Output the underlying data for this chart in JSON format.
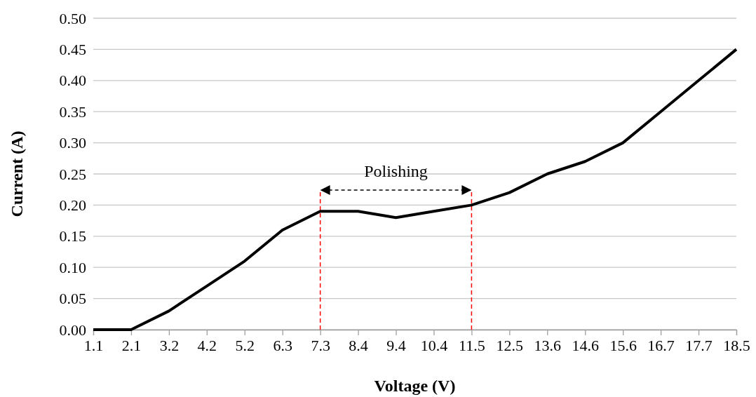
{
  "chart_data": {
    "type": "line",
    "xlabel": "Voltage (V)",
    "ylabel": "Current (A)",
    "categories": [
      "1.1",
      "2.1",
      "3.2",
      "4.2",
      "5.2",
      "6.3",
      "7.3",
      "8.4",
      "9.4",
      "10.4",
      "11.5",
      "12.5",
      "13.6",
      "14.6",
      "15.6",
      "16.7",
      "17.7",
      "18.5"
    ],
    "series": [
      {
        "color": "#000000",
        "values": [
          0,
          0,
          0.03,
          0.07,
          0.11,
          0.16,
          0.19,
          0.19,
          0.18,
          0.19,
          0.2,
          0.22,
          0.25,
          0.27,
          0.3,
          0.35,
          0.4,
          0.45
        ]
      }
    ],
    "ylim": [
      0,
      0.5
    ],
    "yticks": [
      {
        "value": 0,
        "label": "0.00"
      },
      {
        "value": 0.05,
        "label": "0.05"
      },
      {
        "value": 0.1,
        "label": "0.10"
      },
      {
        "value": 0.15,
        "label": "0.15"
      },
      {
        "value": 0.2,
        "label": "0.20"
      },
      {
        "value": 0.25,
        "label": "0.25"
      },
      {
        "value": 0.3,
        "label": "0.30"
      },
      {
        "value": 0.35,
        "label": "0.35"
      },
      {
        "value": 0.4,
        "label": "0.40"
      },
      {
        "value": 0.45,
        "label": "0.45"
      },
      {
        "value": 0.5,
        "label": "0.50"
      }
    ],
    "grid": "y",
    "marker": "none",
    "line_style": "solid",
    "ref_lines": [
      {
        "axis": "x",
        "value": "7.3",
        "color": "#ff0000",
        "line_style": "dashed"
      },
      {
        "axis": "x",
        "value": "11.5",
        "color": "#ff0000",
        "line_style": "dashed"
      }
    ],
    "annotations": [
      "Polishing"
    ]
  }
}
